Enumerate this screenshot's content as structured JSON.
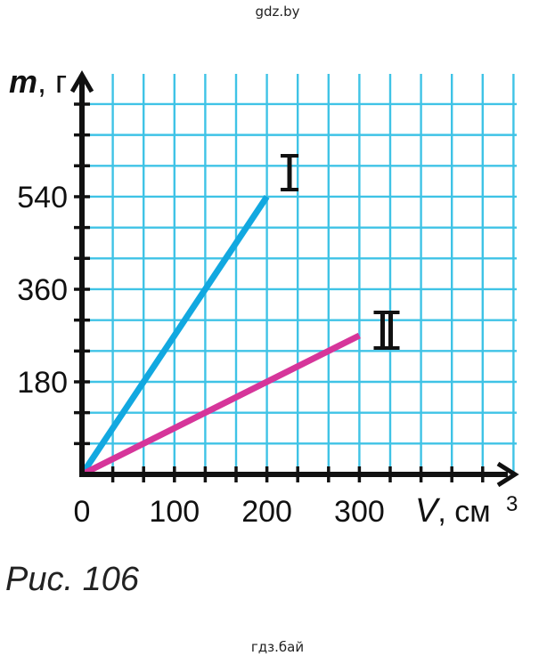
{
  "watermark_top": "gdz.by",
  "watermark_bottom": "гдз.бай",
  "caption": "Рис. 106",
  "colors": {
    "grid": "#3fc3e6",
    "axis": "#111111",
    "series_I": "#12a8e0",
    "series_II": "#d6359a"
  },
  "chart_data": {
    "type": "line",
    "xlabel_var": "V",
    "xlabel_unit": "см",
    "xlabel_exp": "3",
    "ylabel_var": "m",
    "ylabel_unit": "г",
    "xlim": [
      0,
      420
    ],
    "ylim": [
      0,
      720
    ],
    "x_ticks": [
      {
        "value": 0,
        "label": "0"
      },
      {
        "value": 100,
        "label": "100"
      },
      {
        "value": 200,
        "label": "200"
      },
      {
        "value": 300,
        "label": "300"
      }
    ],
    "y_ticks": [
      {
        "value": 180,
        "label": "180"
      },
      {
        "value": 360,
        "label": "360"
      },
      {
        "value": 540,
        "label": "540"
      }
    ],
    "grid": true,
    "series": [
      {
        "name": "I",
        "x": [
          0,
          200
        ],
        "y": [
          0,
          540
        ]
      },
      {
        "name": "II",
        "x": [
          0,
          300
        ],
        "y": [
          0,
          270
        ]
      }
    ]
  }
}
